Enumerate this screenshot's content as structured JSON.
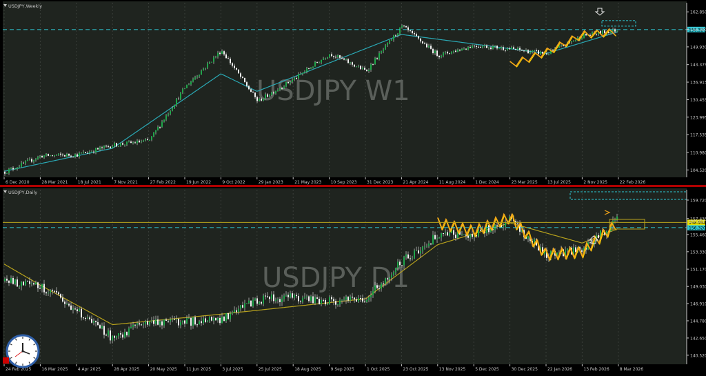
{
  "colors": {
    "background": "#1f241f",
    "grid": "#3a3f3a",
    "axis_text": "#c8c8c8",
    "bull": "#1fa64a",
    "bear": "#f2f2f2",
    "wick": "#bfbfbf",
    "ma_weekly": "#2aa9b5",
    "ma_daily": "#b8a21c",
    "zigzag": "#f2a51a",
    "zigzag_hi": "#ffd400",
    "price_tag": "#2ec7d4",
    "level_tag": "#e8e000",
    "level_line": "#b8a21c",
    "divider": "#b00000",
    "watermark": "#5a5f5a",
    "arrow": "#e8e8e8"
  },
  "icons": {
    "down_arrow": "down-arrow-icon",
    "up_arrow": "up-arrow-icon",
    "clock": "analog-clock-icon",
    "record": "record-button-icon"
  },
  "weekly": {
    "symbol_label": "USDJPY,Weekly",
    "watermark": "USDJPY W1",
    "current_price_label": "156.320",
    "y_ticks": [
      "162.850",
      "156.390",
      "149.930",
      "143.375",
      "136.915",
      "130.455",
      "123.995",
      "117.535",
      "110.980",
      "104.520"
    ],
    "x_ticks": [
      "6 Dec 2020",
      "28 Mar 2021",
      "18 Jul 2021",
      "7 Nov 2021",
      "27 Feb 2022",
      "19 Jun 2022",
      "9 Oct 2022",
      "29 Jan 2023",
      "21 May 2023",
      "10 Sep 2023",
      "31 Dec 2023",
      "21 Apr 2024",
      "11 Aug 2024",
      "1 Dec 2024",
      "23 Mar 2025",
      "13 Jul 2025",
      "2 Nov 2025",
      "22 Feb 2026"
    ]
  },
  "daily": {
    "symbol_label": "USDJPY,Daily",
    "watermark": "USDJPY D1",
    "current_price_label": "156.320",
    "upper_level_label": "157.053",
    "support_level_label": "156.954",
    "y_ticks": [
      "159.720",
      "157.435",
      "155.460",
      "153.330",
      "151.170",
      "149.030",
      "146.910",
      "144.780",
      "142.650",
      "140.520"
    ],
    "x_ticks": [
      "24 Feb 2025",
      "16 Mar 2025",
      "4 Apr 2025",
      "28 Apr 2025",
      "20 May 2025",
      "11 Jun 2025",
      "3 Jul 2025",
      "25 Jul 2025",
      "18 Aug 2025",
      "9 Sep 2025",
      "1 Oct 2025",
      "23 Oct 2025",
      "13 Nov 2025",
      "5 Dec 2025",
      "30 Dec 2025",
      "22 Jan 2026",
      "13 Feb 2026",
      "8 Mar 2026"
    ]
  },
  "chart_data": [
    {
      "type": "candlestick",
      "title": "USDJPY,Weekly",
      "timeframe": "W1",
      "xlabels": [
        "6 Dec 2020",
        "28 Mar 2021",
        "18 Jul 2021",
        "7 Nov 2021",
        "27 Feb 2022",
        "19 Jun 2022",
        "9 Oct 2022",
        "29 Jan 2023",
        "21 May 2023",
        "10 Sep 2023",
        "31 Dec 2023",
        "21 Apr 2024",
        "11 Aug 2024",
        "1 Dec 2024",
        "23 Mar 2025",
        "13 Jul 2025",
        "2 Nov 2025",
        "22 Feb 2026"
      ],
      "ylim": [
        101.8,
        166.2
      ],
      "current_price": 156.32,
      "resistance_level": 156.32,
      "close_path": [
        {
          "x": "6 Dec 2020",
          "y": 103.8
        },
        {
          "x": "28 Mar 2021",
          "y": 109.7
        },
        {
          "x": "18 Jul 2021",
          "y": 110.1
        },
        {
          "x": "7 Nov 2021",
          "y": 113.7
        },
        {
          "x": "27 Feb 2022",
          "y": 115.3
        },
        {
          "x": "19 Jun 2022",
          "y": 135.2
        },
        {
          "x": "9 Oct 2022",
          "y": 148.7
        },
        {
          "x": "29 Jan 2023",
          "y": 129.9
        },
        {
          "x": "21 May 2023",
          "y": 138.0
        },
        {
          "x": "10 Sep 2023",
          "y": 147.5
        },
        {
          "x": "31 Dec 2023",
          "y": 141.0
        },
        {
          "x": "21 Apr 2024",
          "y": 157.5
        },
        {
          "x": "11 Aug 2024",
          "y": 146.8
        },
        {
          "x": "1 Dec 2024",
          "y": 150.5
        },
        {
          "x": "23 Mar 2025",
          "y": 149.2
        },
        {
          "x": "13 Jul 2025",
          "y": 147.4
        },
        {
          "x": "2 Nov 2025",
          "y": 154.0
        },
        {
          "x": "22 Feb 2026",
          "y": 156.3
        }
      ],
      "moving_average_path": [
        {
          "x": "6 Dec 2020",
          "y": 104.0
        },
        {
          "x": "7 Nov 2021",
          "y": 112.5
        },
        {
          "x": "9 Oct 2022",
          "y": 140.0
        },
        {
          "x": "29 Jan 2023",
          "y": 133.5
        },
        {
          "x": "10 Sep 2023",
          "y": 144.0
        },
        {
          "x": "21 Apr 2024",
          "y": 154.5
        },
        {
          "x": "1 Dec 2024",
          "y": 151.0
        },
        {
          "x": "13 Jul 2025",
          "y": 147.5
        },
        {
          "x": "22 Feb 2026",
          "y": 155.5
        }
      ],
      "zigzag_path": [
        {
          "x": "23 Mar 2025",
          "y": 143.3
        },
        {
          "x": "13 Jul 2025",
          "y": 148.0
        },
        {
          "x": "2 Nov 2025",
          "y": 154.5
        },
        {
          "x": "22 Feb 2026",
          "y": 155.5
        }
      ]
    },
    {
      "type": "candlestick",
      "title": "USDJPY,Daily",
      "timeframe": "D1",
      "xlabels": [
        "24 Feb 2025",
        "16 Mar 2025",
        "4 Apr 2025",
        "28 Apr 2025",
        "20 May 2025",
        "11 Jun 2025",
        "3 Jul 2025",
        "25 Jul 2025",
        "18 Aug 2025",
        "9 Sep 2025",
        "1 Oct 2025",
        "23 Oct 2025",
        "13 Nov 2025",
        "5 Dec 2025",
        "30 Dec 2025",
        "22 Jan 2026",
        "13 Feb 2026",
        "8 Mar 2026"
      ],
      "ylim": [
        139.4,
        161.0
      ],
      "current_price": 156.32,
      "levels": [
        157.053,
        156.954
      ],
      "close_path": [
        {
          "x": "24 Feb 2025",
          "y": 149.7
        },
        {
          "x": "16 Mar 2025",
          "y": 149.1
        },
        {
          "x": "4 Apr 2025",
          "y": 146.0
        },
        {
          "x": "28 Apr 2025",
          "y": 142.6
        },
        {
          "x": "20 May 2025",
          "y": 144.8
        },
        {
          "x": "11 Jun 2025",
          "y": 144.6
        },
        {
          "x": "3 Jul 2025",
          "y": 145.0
        },
        {
          "x": "25 Jul 2025",
          "y": 147.4
        },
        {
          "x": "18 Aug 2025",
          "y": 147.7
        },
        {
          "x": "9 Sep 2025",
          "y": 147.2
        },
        {
          "x": "1 Oct 2025",
          "y": 147.6
        },
        {
          "x": "23 Oct 2025",
          "y": 152.1
        },
        {
          "x": "13 Nov 2025",
          "y": 155.4
        },
        {
          "x": "5 Dec 2025",
          "y": 155.6
        },
        {
          "x": "30 Dec 2025",
          "y": 157.2
        },
        {
          "x": "22 Jan 2026",
          "y": 153.0
        },
        {
          "x": "13 Feb 2026",
          "y": 153.6
        },
        {
          "x": "8 Mar 2026",
          "y": 157.4
        }
      ],
      "moving_average_path": [
        {
          "x": "24 Feb 2025",
          "y": 151.8
        },
        {
          "x": "16 Mar 2025",
          "y": 149.2
        },
        {
          "x": "28 Apr 2025",
          "y": 144.3
        },
        {
          "x": "3 Jul 2025",
          "y": 145.6
        },
        {
          "x": "1 Oct 2025",
          "y": 147.5
        },
        {
          "x": "13 Nov 2025",
          "y": 154.2
        },
        {
          "x": "30 Dec 2025",
          "y": 156.9
        },
        {
          "x": "13 Feb 2026",
          "y": 154.4
        },
        {
          "x": "8 Mar 2026",
          "y": 156.2
        }
      ],
      "zigzag_path": [
        {
          "x": "13 Nov 2025",
          "y": 156.9
        },
        {
          "x": "5 Dec 2025",
          "y": 155.9
        },
        {
          "x": "30 Dec 2025",
          "y": 157.6
        },
        {
          "x": "22 Jan 2026",
          "y": 153.0
        },
        {
          "x": "13 Feb 2026",
          "y": 153.3
        },
        {
          "x": "8 Mar 2026",
          "y": 157.0
        }
      ]
    }
  ]
}
